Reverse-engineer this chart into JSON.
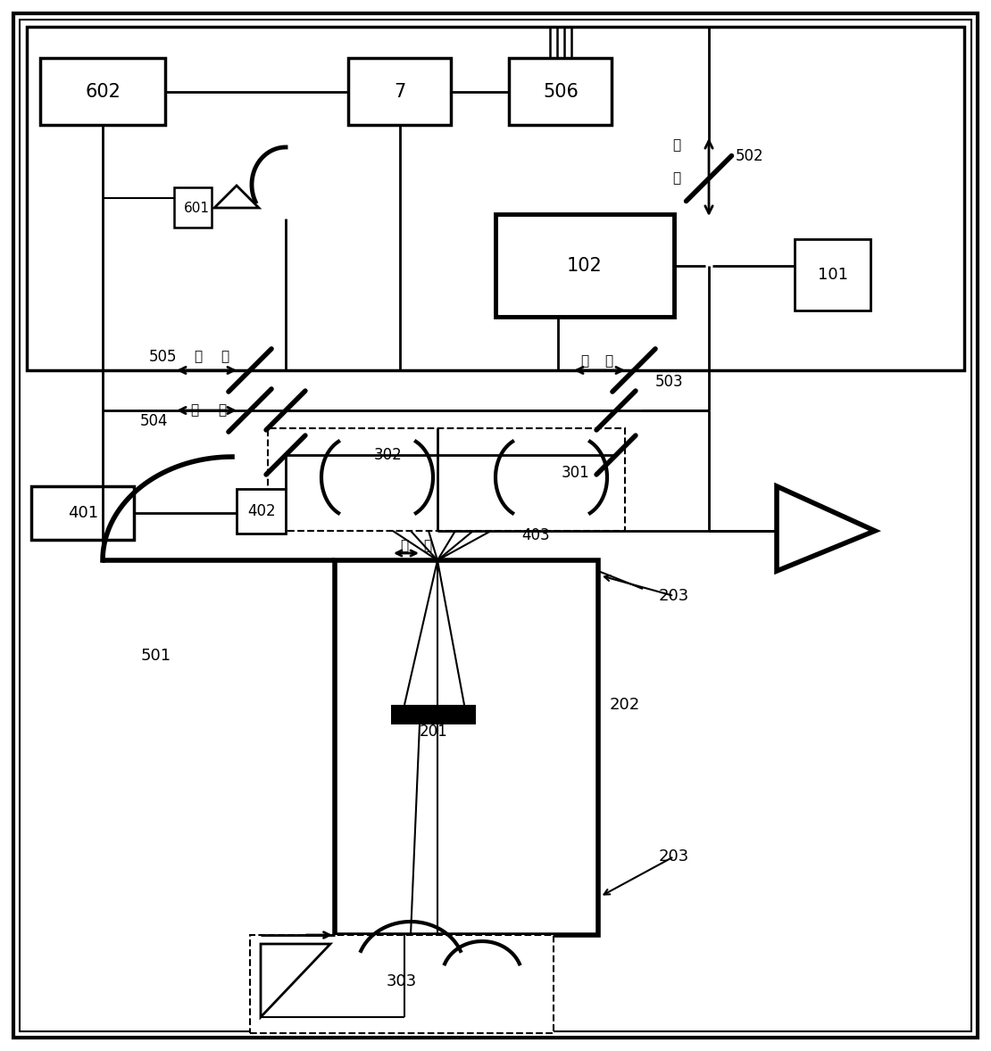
{
  "bg": "#ffffff",
  "lc": "#000000",
  "lw": 2.0,
  "lw_thick": 4.0,
  "lw_thin": 1.5,
  "lw_border": 2.5,
  "fs_main": 14,
  "fs_small": 11,
  "guan": "关",
  "kai": "开",
  "figsize": [
    11.1,
    11.78
  ],
  "dpi": 100
}
